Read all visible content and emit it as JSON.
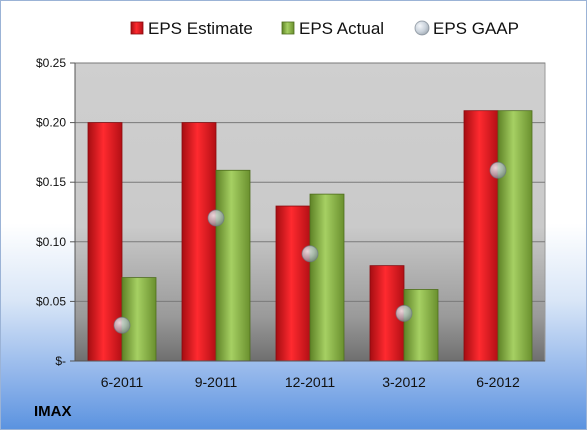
{
  "chart_data": {
    "type": "bar",
    "categories": [
      "6-2011",
      "9-2011",
      "12-2011",
      "3-2012",
      "6-2012"
    ],
    "series": [
      {
        "name": "EPS Estimate",
        "kind": "bar",
        "values": [
          0.2,
          0.2,
          0.13,
          0.08,
          0.21
        ],
        "color": "#e0141c"
      },
      {
        "name": "EPS Actual",
        "kind": "bar",
        "values": [
          0.07,
          0.16,
          0.14,
          0.06,
          0.21
        ],
        "color": "#8ab54a"
      },
      {
        "name": "EPS GAAP",
        "kind": "marker",
        "values": [
          0.03,
          0.12,
          0.09,
          0.04,
          0.16
        ],
        "color": "#b9c4d0"
      }
    ],
    "ylim": [
      0,
      0.25
    ],
    "yticks": [
      0,
      0.05,
      0.1,
      0.15,
      0.2,
      0.25
    ],
    "ytick_labels": [
      "$-",
      "$0.05",
      "$0.10",
      "$0.15",
      "$0.20",
      "$0.25"
    ],
    "grid": true,
    "legend": "top"
  },
  "footer": {
    "company": "IMAX"
  }
}
